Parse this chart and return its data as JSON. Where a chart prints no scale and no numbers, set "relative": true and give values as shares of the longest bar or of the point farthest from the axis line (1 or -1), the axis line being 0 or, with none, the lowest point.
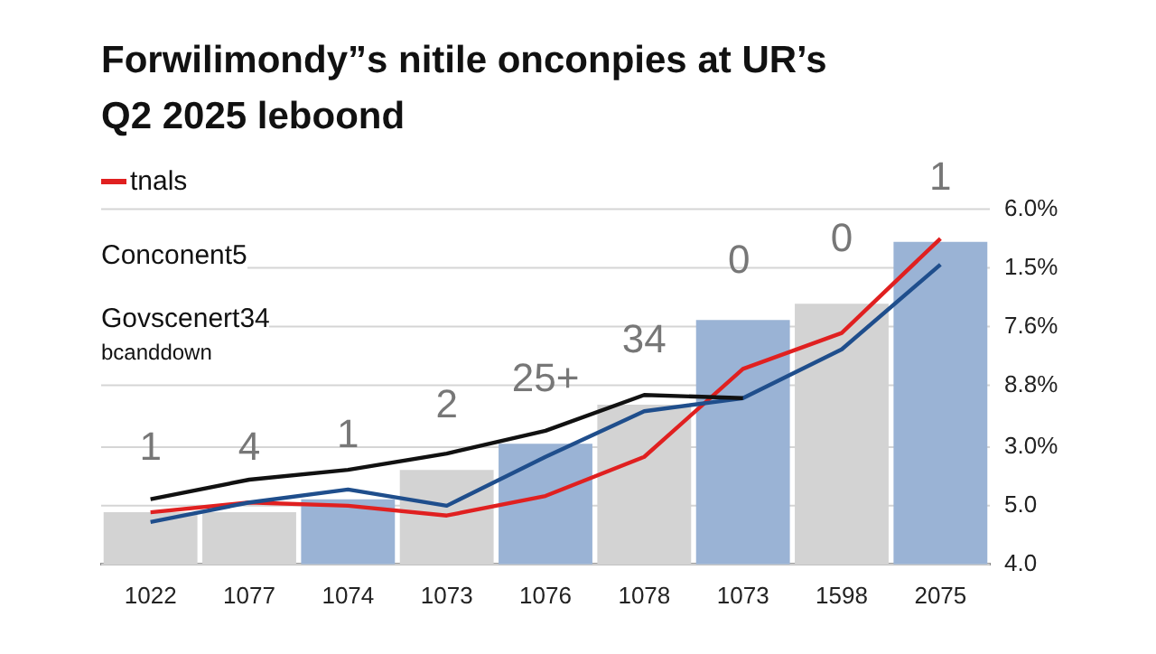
{
  "chart_data": {
    "type": "bar",
    "title": "Forwilimondy”s nitile onconpies at UR’s\nQ2 2025 leboond",
    "categories": [
      "1022",
      "1077",
      "1074",
      "1073",
      "1076",
      "1078",
      "1073",
      "1598",
      "2075"
    ],
    "relative": true,
    "legend": "top left",
    "ref_lines": [
      {
        "axis": "y",
        "value": 0
      },
      {
        "axis": "y",
        "value": 0.18
      },
      {
        "axis": "y",
        "value": 0.36
      },
      {
        "axis": "y",
        "value": 0.55
      },
      {
        "axis": "y",
        "value": 0.73
      },
      {
        "axis": "y",
        "value": 0.91
      },
      {
        "axis": "y",
        "value": 1.09
      }
    ],
    "annotations": [
      "Conconent5",
      "Govscenert34",
      "bcanddown",
      "0",
      "4.0",
      "5.0",
      "3.0%",
      "8.8%",
      "7.6%",
      "1.5%",
      "6.0%",
      {
        "text": "1",
        "x": "1022",
        "y": 0.16
      },
      {
        "text": "4",
        "x": "1077",
        "y": 0.16
      },
      {
        "text": "1",
        "x": "1074",
        "y": 0.2
      },
      {
        "text": "2",
        "x": "1073",
        "y": 0.29
      },
      {
        "text": "25+",
        "x": "1076",
        "y": 0.37
      },
      {
        "text": "34",
        "x": "1078",
        "y": 0.49
      },
      {
        "text": "0",
        "x": "1598",
        "y": 0.8
      },
      {
        "text": "1",
        "x": "2075",
        "y": 0.99
      }
    ],
    "series": [
      {
        "colors": [
          "#d3d3d3",
          "#d3d3d3",
          "#9ab3d5",
          "#d3d3d3",
          "#9ab3d5",
          "#d3d3d3",
          "#9ab3d5",
          "#d3d3d3",
          "#9ab3d5"
        ],
        "values": [
          0.16,
          0.16,
          0.2,
          0.29,
          0.37,
          0.49,
          0.75,
          0.8,
          0.99
        ]
      },
      {
        "type": "line",
        "color": "#111111",
        "values": [
          0.2,
          0.26,
          0.29,
          0.34,
          0.41,
          0.52,
          0.51,
          null,
          null
        ]
      },
      {
        "type": "line",
        "color": "#1f4e8c",
        "values": [
          0.13,
          0.19,
          0.23,
          0.18,
          0.33,
          0.47,
          0.51,
          0.66,
          0.92
        ]
      },
      {
        "type": "line",
        "name": "tnals",
        "color": "#e02020",
        "values": [
          0.16,
          0.19,
          0.18,
          0.15,
          0.21,
          0.33,
          0.6,
          0.71,
          1
        ]
      }
    ]
  }
}
